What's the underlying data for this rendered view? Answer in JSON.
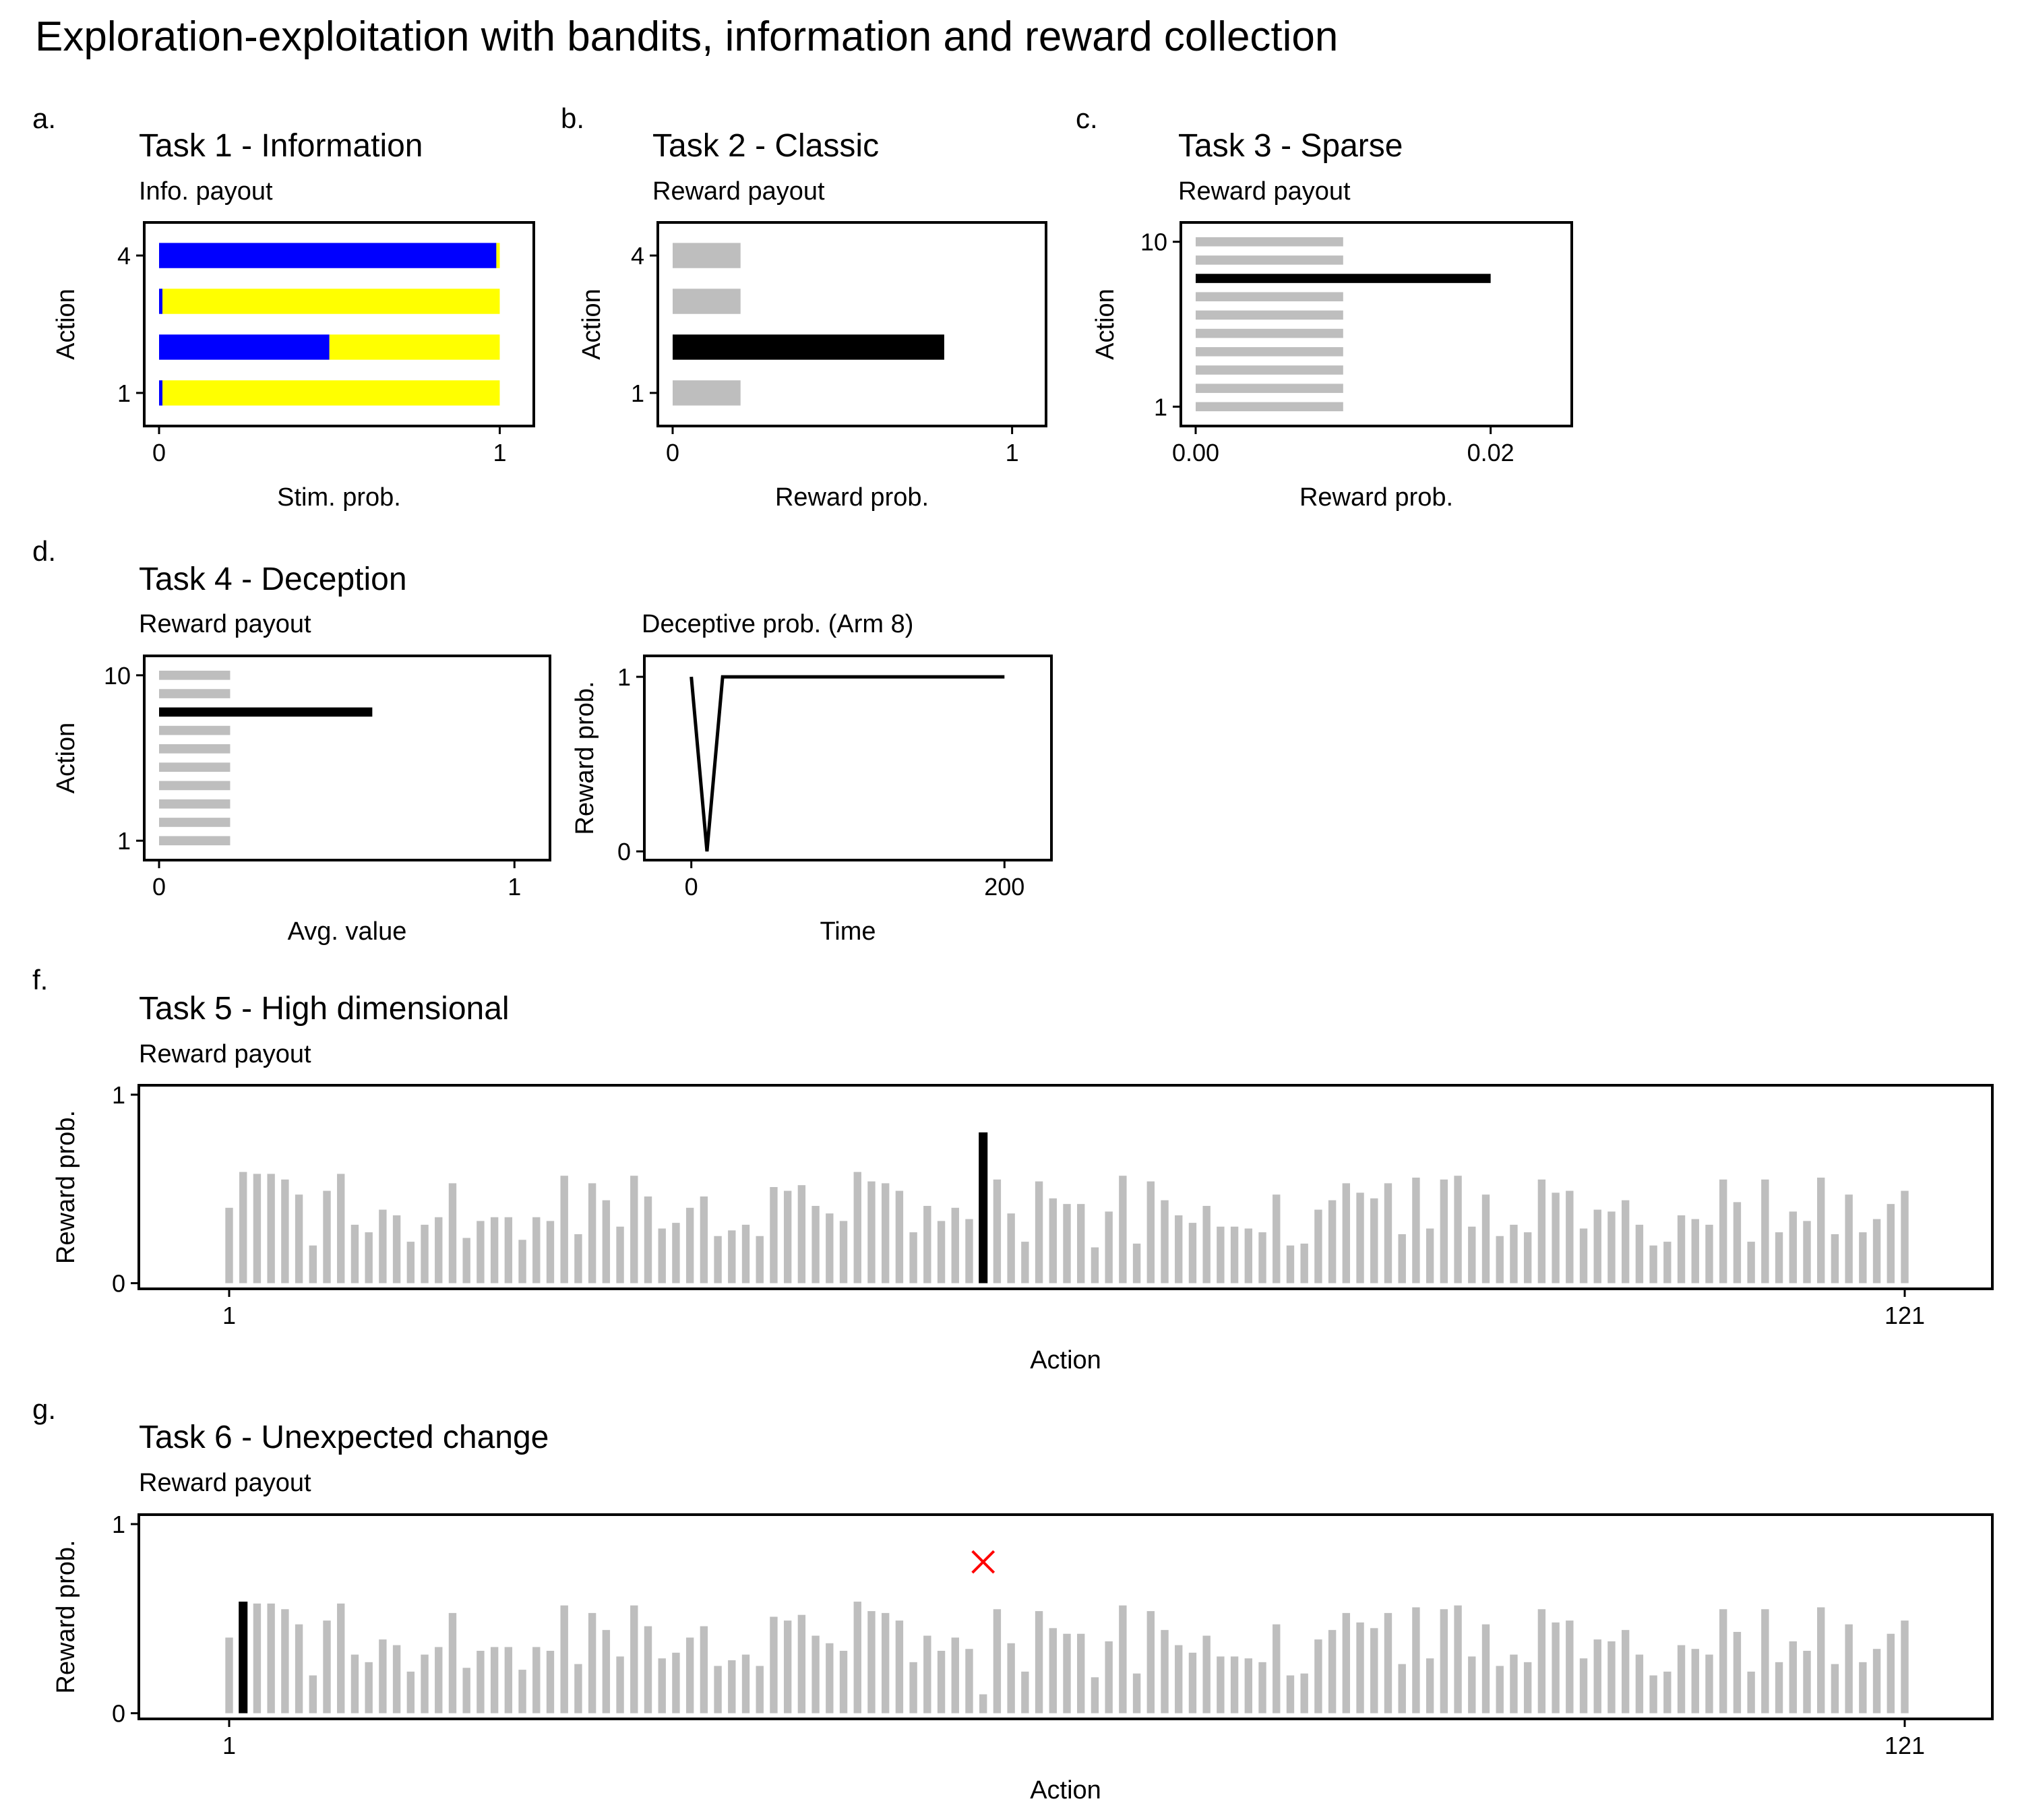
{
  "title": "Exploration-exploitation with bandits, information and reward collection",
  "panels": {
    "a": {
      "letter": "a.",
      "title": "Task 1 - Information",
      "subtitle": "Info. payout",
      "xlabel": "Stim. prob.",
      "ylabel": "Action",
      "xticks": [
        "0",
        "1"
      ],
      "yticks": [
        "1",
        "4"
      ]
    },
    "b": {
      "letter": "b.",
      "title": "Task 2 - Classic",
      "subtitle": "Reward payout",
      "xlabel": "Reward prob.",
      "ylabel": "Action",
      "xticks": [
        "0",
        "1"
      ],
      "yticks": [
        "1",
        "4"
      ]
    },
    "c": {
      "letter": "c.",
      "title": "Task 3 - Sparse",
      "subtitle": "Reward payout",
      "xlabel": "Reward prob.",
      "ylabel": "Action",
      "xticks": [
        "0.00",
        "0.02"
      ],
      "yticks": [
        "1",
        "10"
      ]
    },
    "d": {
      "letter": "d.",
      "title": "Task 4 - Deception",
      "subtitle": "Reward payout",
      "xlabel": "Avg. value",
      "ylabel": "Action",
      "xticks": [
        "0",
        "1"
      ],
      "yticks": [
        "1",
        "10"
      ]
    },
    "d2": {
      "subtitle": "Deceptive prob. (Arm 8)",
      "xlabel": "Time",
      "ylabel": "Reward prob.",
      "xticks": [
        "0",
        "200"
      ],
      "yticks": [
        "0",
        "1"
      ]
    },
    "f": {
      "letter": "f.",
      "title": "Task 5 - High dimensional",
      "subtitle": "Reward payout",
      "xlabel": "Action",
      "ylabel": "Reward prob.",
      "xticks": [
        "1",
        "121"
      ],
      "yticks": [
        "0",
        "1"
      ]
    },
    "g": {
      "letter": "g.",
      "title": "Task 6 - Unexpected change",
      "subtitle": "Reward payout",
      "xlabel": "Action",
      "ylabel": "Reward prob.",
      "xticks": [
        "1",
        "121"
      ],
      "yticks": [
        "0",
        "1"
      ]
    }
  },
  "colors": {
    "info_blue": "#0000ff",
    "info_yellow": "#ffff00",
    "best_arm": "#000000",
    "other_arm": "#bebebe",
    "change_marker": "#ff0000"
  },
  "chart_data": [
    {
      "panel": "a",
      "type": "bar",
      "orientation": "horizontal",
      "stacked": true,
      "categories": [
        1,
        2,
        3,
        4
      ],
      "series": [
        {
          "values": [
            0.01,
            0.5,
            0.01,
            0.99
          ]
        },
        {
          "values": [
            0.99,
            0.5,
            0.99,
            0.01
          ]
        }
      ],
      "xlim": [
        0,
        1.1
      ]
    },
    {
      "panel": "b",
      "type": "bar",
      "orientation": "horizontal",
      "categories": [
        1,
        2,
        3,
        4
      ],
      "values": [
        0.2,
        0.8,
        0.2,
        0.2
      ],
      "best_index": 1,
      "xlim": [
        0,
        1.1
      ]
    },
    {
      "panel": "c",
      "type": "bar",
      "orientation": "horizontal",
      "categories": [
        1,
        2,
        3,
        4,
        5,
        6,
        7,
        8,
        9,
        10
      ],
      "values": [
        0.01,
        0.01,
        0.01,
        0.01,
        0.01,
        0.01,
        0.01,
        0.02,
        0.01,
        0.01
      ],
      "best_index": 7,
      "xlim": [
        0,
        0.0255
      ]
    },
    {
      "panel": "d",
      "type": "bar",
      "orientation": "horizontal",
      "categories": [
        1,
        2,
        3,
        4,
        5,
        6,
        7,
        8,
        9,
        10
      ],
      "values": [
        0.2,
        0.2,
        0.2,
        0.2,
        0.2,
        0.2,
        0.2,
        0.6,
        0.2,
        0.2
      ],
      "best_index": 7,
      "xlim": [
        0,
        1.1
      ]
    },
    {
      "panel": "d2",
      "type": "line",
      "x": [
        0,
        10,
        20,
        200
      ],
      "y": [
        1,
        0,
        1,
        1
      ],
      "xlim": [
        -30,
        230
      ],
      "ylim": [
        -0.05,
        1.12
      ]
    },
    {
      "panel": "f",
      "type": "bar",
      "x_start": 1,
      "values": [
        0.4,
        0.59,
        0.58,
        0.58,
        0.55,
        0.47,
        0.2,
        0.49,
        0.58,
        0.31,
        0.27,
        0.39,
        0.36,
        0.22,
        0.31,
        0.35,
        0.53,
        0.24,
        0.33,
        0.35,
        0.35,
        0.23,
        0.35,
        0.33,
        0.57,
        0.26,
        0.53,
        0.44,
        0.3,
        0.57,
        0.46,
        0.29,
        0.32,
        0.4,
        0.46,
        0.25,
        0.28,
        0.31,
        0.25,
        0.51,
        0.49,
        0.52,
        0.41,
        0.37,
        0.33,
        0.59,
        0.54,
        0.53,
        0.49,
        0.27,
        0.41,
        0.33,
        0.4,
        0.34,
        0.8,
        0.55,
        0.37,
        0.22,
        0.54,
        0.45,
        0.42,
        0.42,
        0.19,
        0.38,
        0.57,
        0.21,
        0.54,
        0.44,
        0.36,
        0.32,
        0.41,
        0.3,
        0.3,
        0.29,
        0.27,
        0.47,
        0.2,
        0.21,
        0.39,
        0.44,
        0.53,
        0.48,
        0.45,
        0.53,
        0.26,
        0.56,
        0.29,
        0.55,
        0.57,
        0.3,
        0.47,
        0.25,
        0.31,
        0.27,
        0.55,
        0.48,
        0.49,
        0.29,
        0.39,
        0.38,
        0.44,
        0.31,
        0.2,
        0.22,
        0.36,
        0.34,
        0.31,
        0.55,
        0.43,
        0.22,
        0.55,
        0.27,
        0.38,
        0.33,
        0.56,
        0.26,
        0.47,
        0.27,
        0.34,
        0.42,
        0.49
      ],
      "best_index": 54,
      "ylim": [
        -0.03,
        1.05
      ]
    },
    {
      "panel": "g",
      "type": "bar",
      "x_start": 1,
      "values": [
        0.4,
        0.59,
        0.58,
        0.58,
        0.55,
        0.47,
        0.2,
        0.49,
        0.58,
        0.31,
        0.27,
        0.39,
        0.36,
        0.22,
        0.31,
        0.35,
        0.53,
        0.24,
        0.33,
        0.35,
        0.35,
        0.23,
        0.35,
        0.33,
        0.57,
        0.26,
        0.53,
        0.44,
        0.3,
        0.57,
        0.46,
        0.29,
        0.32,
        0.4,
        0.46,
        0.25,
        0.28,
        0.31,
        0.25,
        0.51,
        0.49,
        0.52,
        0.41,
        0.37,
        0.33,
        0.59,
        0.54,
        0.53,
        0.49,
        0.27,
        0.41,
        0.33,
        0.4,
        0.34,
        0.1,
        0.55,
        0.37,
        0.22,
        0.54,
        0.45,
        0.42,
        0.42,
        0.19,
        0.38,
        0.57,
        0.21,
        0.54,
        0.44,
        0.36,
        0.32,
        0.41,
        0.3,
        0.3,
        0.29,
        0.27,
        0.47,
        0.2,
        0.21,
        0.39,
        0.44,
        0.53,
        0.48,
        0.45,
        0.53,
        0.26,
        0.56,
        0.29,
        0.55,
        0.57,
        0.3,
        0.47,
        0.25,
        0.31,
        0.27,
        0.55,
        0.48,
        0.49,
        0.29,
        0.39,
        0.38,
        0.44,
        0.31,
        0.2,
        0.22,
        0.36,
        0.34,
        0.31,
        0.55,
        0.43,
        0.22,
        0.55,
        0.27,
        0.38,
        0.33,
        0.56,
        0.26,
        0.47,
        0.27,
        0.34,
        0.42,
        0.49
      ],
      "best_index": 1,
      "best_value": 0.59,
      "change_marker": {
        "arm": 55,
        "value": 0.8
      },
      "ylim": [
        -0.03,
        1.05
      ]
    }
  ]
}
